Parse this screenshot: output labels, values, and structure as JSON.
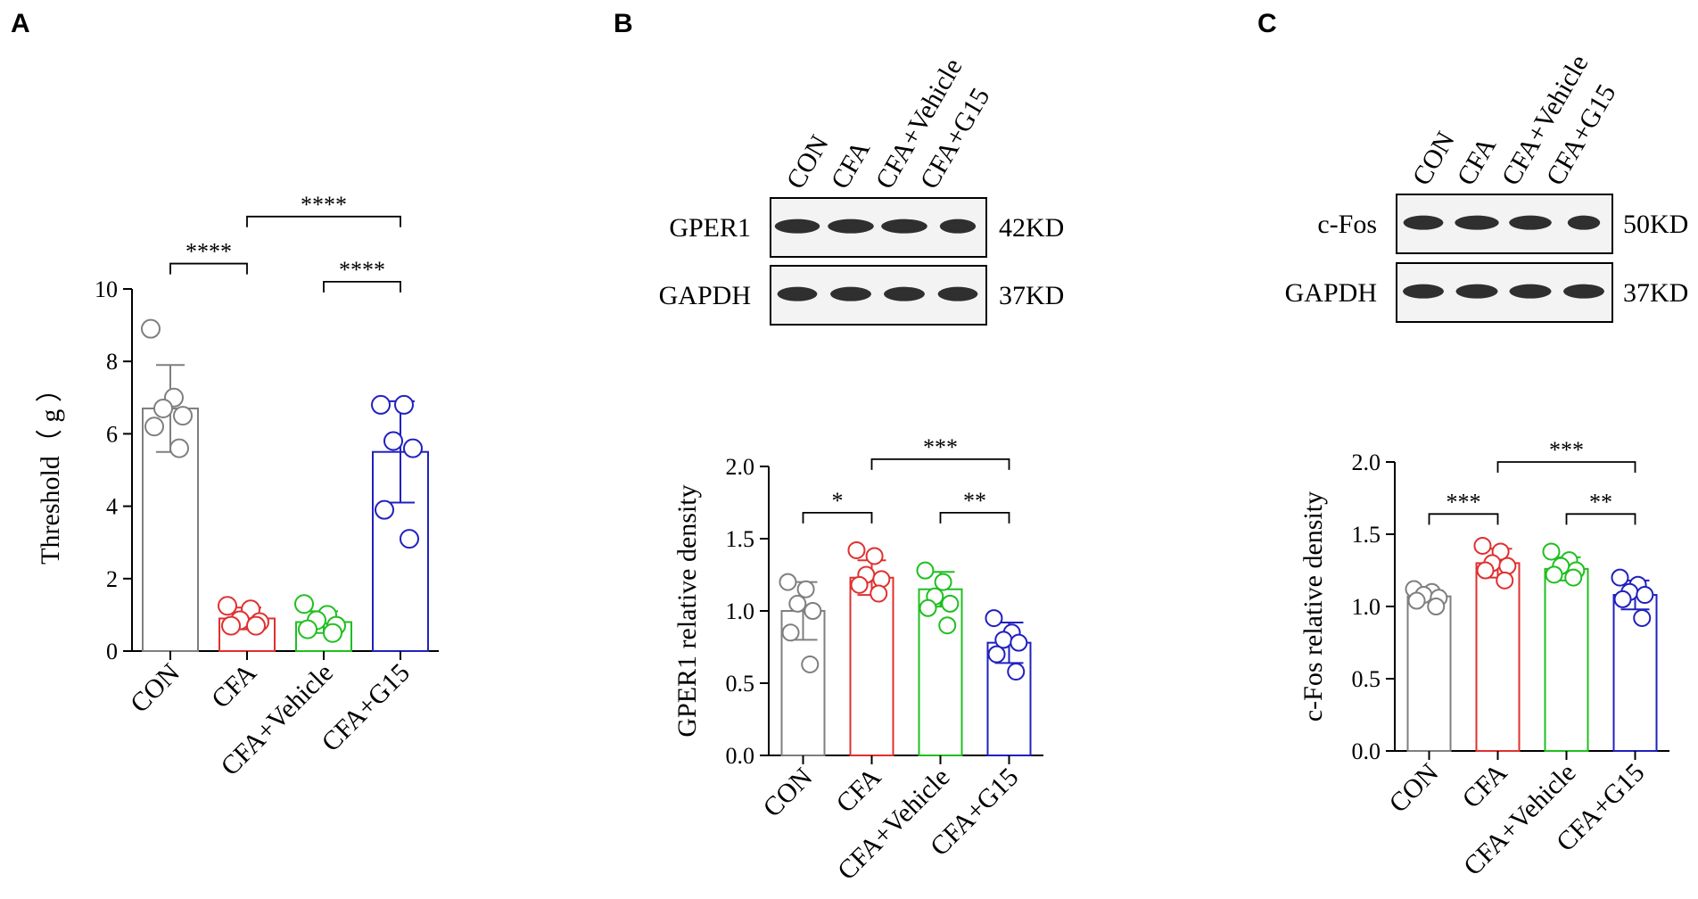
{
  "panels": [
    {
      "letter": "A"
    },
    {
      "letter": "B"
    },
    {
      "letter": "C"
    }
  ],
  "blots": [
    {
      "panel": "B",
      "lanes": [
        "CON",
        "CFA",
        "CFA+Vehicle",
        "CFA+G15"
      ],
      "rows": [
        {
          "protein": "GPER1",
          "size": "42KD"
        },
        {
          "protein": "GAPDH",
          "size": "37KD"
        }
      ]
    },
    {
      "panel": "C",
      "lanes": [
        "CON",
        "CFA",
        "CFA+Vehicle",
        "CFA+G15"
      ],
      "rows": [
        {
          "protein": "c-Fos",
          "size": "50KD"
        },
        {
          "protein": "GAPDH",
          "size": "37KD"
        }
      ]
    }
  ],
  "colors": {
    "CON": "#7f7f7f",
    "CFA": "#e03030",
    "CFA+Vehicle": "#1fbf1f",
    "CFA+G15": "#2020c0",
    "axis": "#000000"
  },
  "chart_data": [
    {
      "panel": "A",
      "type": "bar",
      "categories": [
        "CON",
        "CFA",
        "CFA+Vehicle",
        "CFA+G15"
      ],
      "ylabel": "Threshold（ g ）",
      "ylim": [
        0,
        10
      ],
      "yticks": [
        "0",
        "2",
        "4",
        "6",
        "8",
        "10"
      ],
      "means": [
        6.7,
        0.9,
        0.8,
        5.5
      ],
      "sd": [
        1.2,
        0.3,
        0.3,
        1.4
      ],
      "points": [
        [
          8.9,
          7.0,
          6.7,
          6.5,
          6.2,
          5.6
        ],
        [
          1.25,
          1.15,
          0.85,
          0.8,
          0.7,
          0.7
        ],
        [
          1.3,
          1.0,
          0.85,
          0.7,
          0.6,
          0.5
        ],
        [
          6.8,
          6.8,
          5.8,
          5.6,
          3.9,
          3.1
        ]
      ],
      "comparisons": [
        {
          "from": 0,
          "to": 1,
          "label": "****",
          "y": 10.7
        },
        {
          "from": 1,
          "to": 3,
          "label": "****",
          "y": 12.0
        },
        {
          "from": 2,
          "to": 3,
          "label": "****",
          "y": 10.2
        }
      ],
      "grid": false
    },
    {
      "panel": "B",
      "type": "bar",
      "categories": [
        "CON",
        "CFA",
        "CFA+Vehicle",
        "CFA+G15"
      ],
      "ylabel": "GPER1  relative density",
      "ylim": [
        0,
        2.0
      ],
      "yticks": [
        "0.0",
        "0.5",
        "1.0",
        "1.5",
        "2.0"
      ],
      "means": [
        1.0,
        1.23,
        1.15,
        0.78
      ],
      "sd": [
        0.2,
        0.12,
        0.12,
        0.14
      ],
      "points": [
        [
          1.2,
          1.15,
          1.05,
          1.0,
          0.85,
          0.63
        ],
        [
          1.42,
          1.38,
          1.25,
          1.22,
          1.18,
          1.12
        ],
        [
          1.28,
          1.2,
          1.1,
          1.05,
          1.02,
          0.9
        ],
        [
          0.95,
          0.85,
          0.8,
          0.78,
          0.7,
          0.58
        ]
      ],
      "comparisons": [
        {
          "from": 0,
          "to": 1,
          "label": "*",
          "y": 1.68
        },
        {
          "from": 1,
          "to": 3,
          "label": "***",
          "y": 2.05
        },
        {
          "from": 2,
          "to": 3,
          "label": "**",
          "y": 1.68
        }
      ],
      "grid": false
    },
    {
      "panel": "C",
      "type": "bar",
      "categories": [
        "CON",
        "CFA",
        "CFA+Vehicle",
        "CFA+G15"
      ],
      "ylabel": "c-Fos relative density",
      "ylim": [
        0,
        2.0
      ],
      "yticks": [
        "0.0",
        "0.5",
        "1.0",
        "1.5",
        "2.0"
      ],
      "means": [
        1.07,
        1.3,
        1.26,
        1.08
      ],
      "sd": [
        0.04,
        0.1,
        0.08,
        0.1
      ],
      "points": [
        [
          1.12,
          1.1,
          1.08,
          1.06,
          1.04,
          1.0
        ],
        [
          1.42,
          1.38,
          1.3,
          1.28,
          1.25,
          1.18
        ],
        [
          1.38,
          1.32,
          1.28,
          1.25,
          1.22,
          1.2
        ],
        [
          1.2,
          1.15,
          1.1,
          1.08,
          1.05,
          0.92
        ]
      ],
      "comparisons": [
        {
          "from": 0,
          "to": 1,
          "label": "***",
          "y": 1.64
        },
        {
          "from": 1,
          "to": 3,
          "label": "***",
          "y": 2.0
        },
        {
          "from": 2,
          "to": 3,
          "label": "**",
          "y": 1.64
        }
      ],
      "grid": false
    }
  ]
}
